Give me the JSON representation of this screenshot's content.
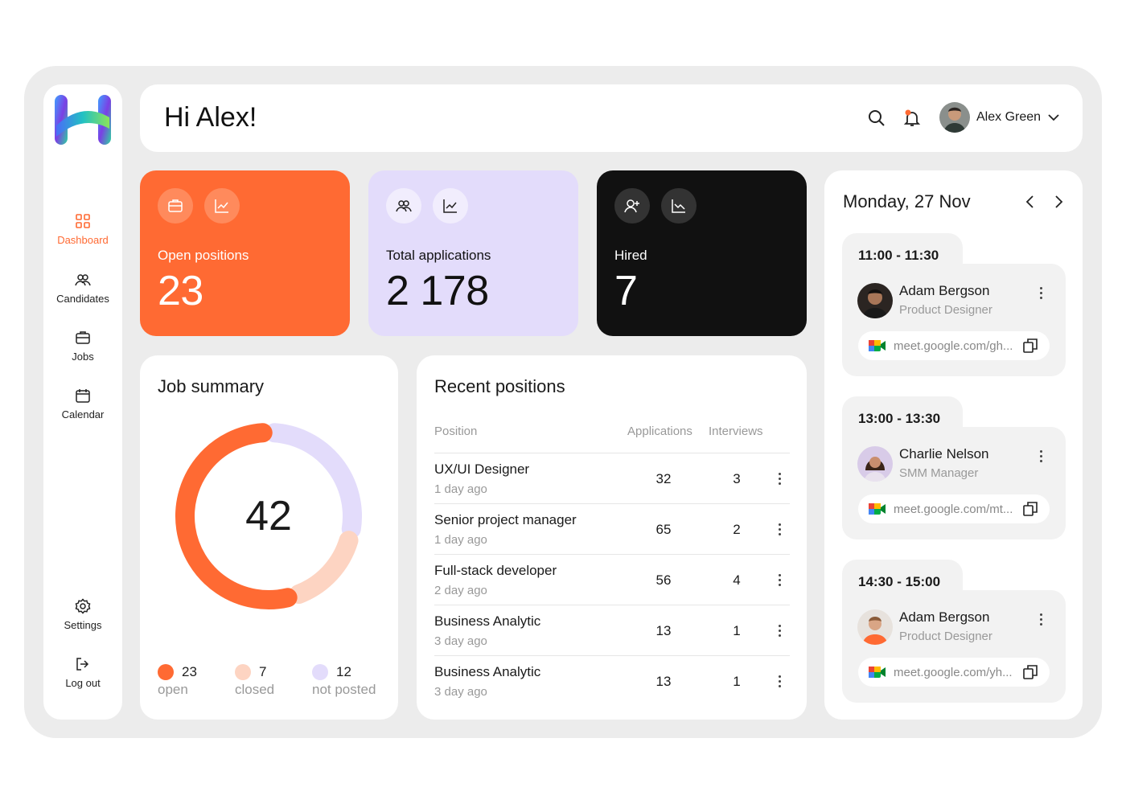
{
  "header": {
    "greeting": "Hi Alex!",
    "user_name": "Alex Green"
  },
  "sidebar": {
    "items": [
      {
        "label": "Dashboard",
        "icon": "grid-icon"
      },
      {
        "label": "Candidates",
        "icon": "people-icon"
      },
      {
        "label": "Jobs",
        "icon": "briefcase-icon"
      },
      {
        "label": "Calendar",
        "icon": "calendar-icon"
      },
      {
        "label": "Settings",
        "icon": "gear-icon"
      },
      {
        "label": "Log out",
        "icon": "logout-icon"
      }
    ]
  },
  "stats": [
    {
      "label": "Open positions",
      "value": "23",
      "color": "#ff6a33"
    },
    {
      "label": "Total applications",
      "value": "2 178",
      "color": "#e3dcfb"
    },
    {
      "label": "Hired",
      "value": "7",
      "color": "#111111"
    }
  ],
  "job_summary": {
    "title": "Job summary",
    "total": "42",
    "segments": [
      {
        "count": "23",
        "label": "open",
        "value": 23,
        "color": "#ff6a33"
      },
      {
        "count": "7",
        "label": "closed",
        "value": 7,
        "color": "#fdd4c2"
      },
      {
        "count": "12",
        "label": "not posted",
        "value": 12,
        "color": "#e3dcfb"
      }
    ]
  },
  "recent_positions": {
    "title": "Recent positions",
    "columns": {
      "position": "Position",
      "applications": "Applications",
      "interviews": "Interviews"
    },
    "rows": [
      {
        "name": "UX/UI Designer",
        "time": "1 day ago",
        "applications": "32",
        "interviews": "3"
      },
      {
        "name": "Senior project manager",
        "time": "1 day ago",
        "applications": "65",
        "interviews": "2"
      },
      {
        "name": "Full-stack developer",
        "time": "2 day ago",
        "applications": "56",
        "interviews": "4"
      },
      {
        "name": "Business Analytic",
        "time": "3 day ago",
        "applications": "13",
        "interviews": "1"
      },
      {
        "name": "Business Analytic",
        "time": "3 day ago",
        "applications": "13",
        "interviews": "1"
      }
    ]
  },
  "schedule": {
    "date": "Monday, 27 Nov",
    "slots": [
      {
        "time": "11:00 - 11:30",
        "name": "Adam Bergson",
        "role": "Product Designer",
        "link": "meet.google.com/gh..."
      },
      {
        "time": "13:00 - 13:30",
        "name": "Charlie Nelson",
        "role": "SMM Manager",
        "link": "meet.google.com/mt..."
      },
      {
        "time": "14:30 - 15:00",
        "name": "Adam Bergson",
        "role": "Product Designer",
        "link": "meet.google.com/yh..."
      }
    ]
  }
}
